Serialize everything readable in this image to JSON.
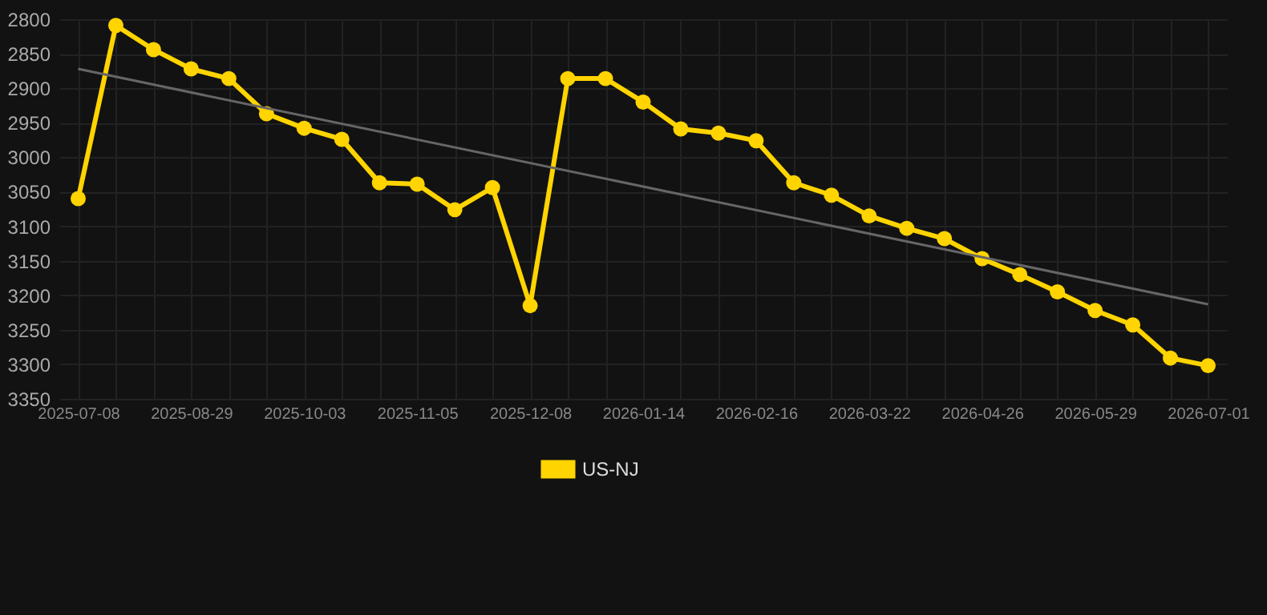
{
  "chart_data": {
    "type": "line",
    "categories": [
      "2025-07-08",
      null,
      null,
      "2025-08-29",
      null,
      null,
      "2025-10-03",
      null,
      null,
      "2025-11-05",
      null,
      null,
      "2025-12-08",
      null,
      null,
      "2026-01-14",
      null,
      null,
      "2026-02-16",
      null,
      null,
      "2026-03-22",
      null,
      null,
      "2026-04-26",
      null,
      null,
      "2026-05-29",
      null,
      null,
      "2026-07-01"
    ],
    "series": [
      {
        "name": "US-NJ",
        "color": "#ffd400",
        "marker": "circle",
        "values": [
          3060,
          2809,
          2844,
          2872,
          2886,
          2937,
          2958,
          2974,
          3037,
          3039,
          3076,
          3044,
          3215,
          2886,
          2886,
          2920,
          2959,
          2965,
          2976,
          3037,
          3055,
          3085,
          3103,
          3118,
          3147,
          3170,
          3195,
          3222,
          3243,
          3291,
          3302
        ]
      },
      {
        "type": "line",
        "color": "#666666",
        "marker": "none",
        "values": [
          2872,
          null,
          null,
          null,
          null,
          null,
          null,
          null,
          null,
          null,
          null,
          null,
          null,
          null,
          null,
          null,
          null,
          null,
          null,
          null,
          null,
          null,
          null,
          null,
          null,
          null,
          null,
          null,
          null,
          null,
          3213
        ]
      }
    ],
    "ylim": [
      3350,
      2800
    ],
    "yticks": [
      2800,
      2850,
      2900,
      2950,
      3000,
      3050,
      3100,
      3150,
      3200,
      3250,
      3300,
      3350
    ],
    "grid": true,
    "legend": "bottom"
  }
}
